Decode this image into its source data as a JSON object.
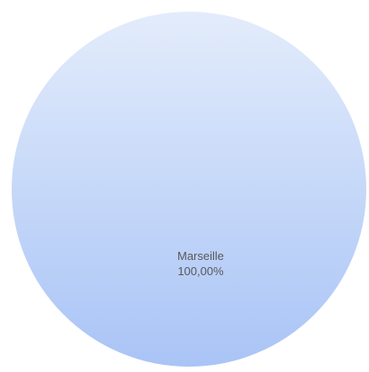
{
  "chart_data": {
    "type": "pie",
    "title": "",
    "slices": [
      {
        "label": "Marseille",
        "value": 100,
        "percent_label": "100,00%",
        "color_top": "#e3ecfb",
        "color_bottom": "#a9c4f6"
      }
    ]
  }
}
